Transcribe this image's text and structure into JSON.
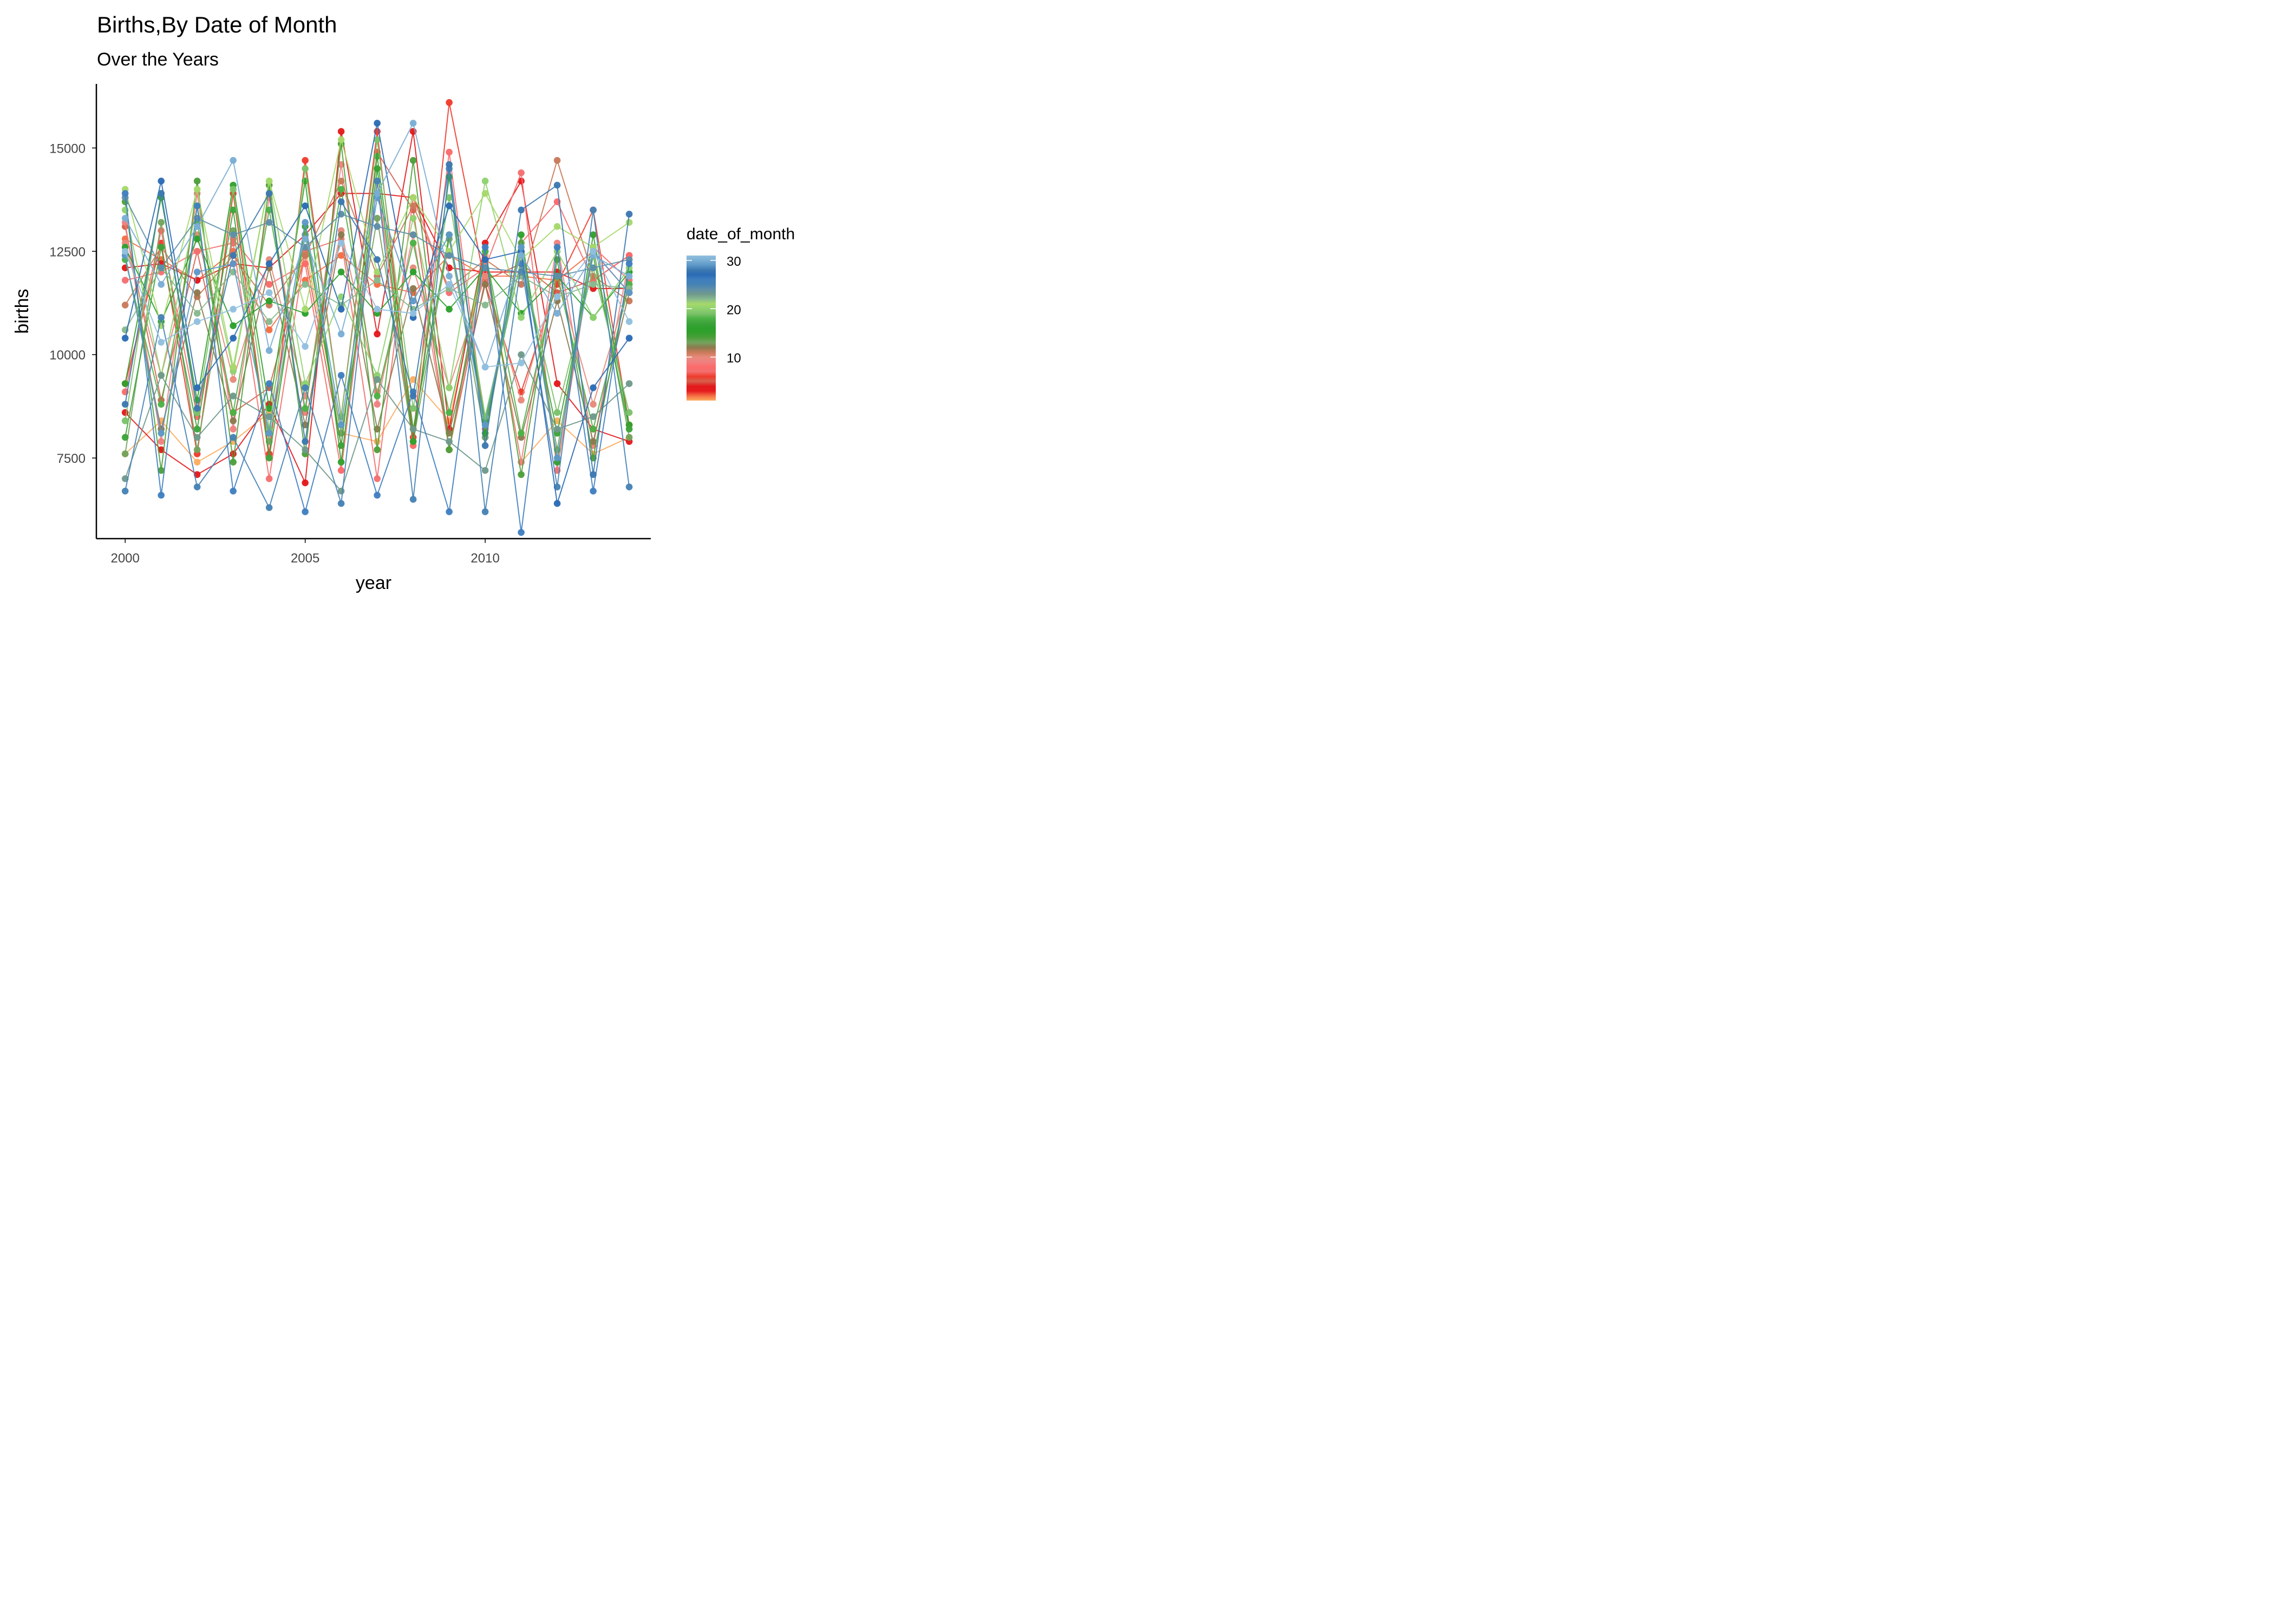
{
  "chart_data": {
    "type": "line",
    "title": "Births,By Date of Month",
    "subtitle": "Over the Years",
    "xlabel": "year",
    "ylabel": "births",
    "legend": {
      "title": "date_of_month",
      "position": "right",
      "ticks": [
        {
          "value": 10,
          "label": "10"
        },
        {
          "value": 20,
          "label": "20"
        },
        {
          "value": 30,
          "label": "30"
        }
      ]
    },
    "x_ticks": [
      2000,
      2005,
      2010
    ],
    "y_ticks": [
      7500,
      10000,
      12500,
      15000
    ],
    "xlim": [
      1999.2,
      2014.6
    ],
    "ylim": [
      5550,
      16550
    ],
    "years": [
      2000,
      2001,
      2002,
      2003,
      2004,
      2005,
      2006,
      2007,
      2008,
      2009,
      2010,
      2011,
      2012,
      2013,
      2014
    ],
    "series": [
      {
        "date_of_month": 1,
        "color": "#fdae61",
        "values": [
          7600,
          8400,
          7400,
          7900,
          8600,
          12600,
          8100,
          7900,
          9400,
          8400,
          12400,
          7400,
          8400,
          7600,
          8000
        ]
      },
      {
        "date_of_month": 2,
        "color": "#f46d43",
        "values": [
          12800,
          12300,
          11800,
          12500,
          10600,
          11800,
          12400,
          11700,
          11500,
          12400,
          11900,
          11900,
          11800,
          12500,
          11500
        ]
      },
      {
        "date_of_month": 3,
        "color": "#e41a1c",
        "values": [
          12100,
          12200,
          11800,
          12200,
          12100,
          12900,
          13900,
          13900,
          13800,
          12100,
          12000,
          12000,
          12000,
          11600,
          11600
        ]
      },
      {
        "date_of_month": 4,
        "color": "#e31a1c",
        "values": [
          8600,
          7700,
          7100,
          7600,
          8800,
          6900,
          15400,
          10500,
          15400,
          8200,
          12700,
          14200,
          9300,
          8200,
          7900
        ]
      },
      {
        "date_of_month": 5,
        "color": "#d6604d",
        "values": [
          13100,
          8900,
          12500,
          8600,
          9200,
          12400,
          7800,
          14900,
          13500,
          7700,
          11800,
          12200,
          11500,
          11800,
          12400
        ]
      },
      {
        "date_of_month": 6,
        "color": "#ef3b2c",
        "values": [
          9300,
          12700,
          7600,
          13900,
          7600,
          14700,
          8500,
          15400,
          8000,
          16100,
          11700,
          9100,
          11700,
          13500,
          8300
        ]
      },
      {
        "date_of_month": 7,
        "color": "#f46f6f",
        "values": [
          11800,
          12000,
          12500,
          12700,
          7000,
          12500,
          12800,
          7000,
          13800,
          11500,
          12100,
          14400,
          7200,
          12600,
          11800
        ]
      },
      {
        "date_of_month": 8,
        "color": "#fb6a6a",
        "values": [
          9100,
          13000,
          8500,
          12800,
          11700,
          12200,
          7200,
          14200,
          7800,
          14900,
          8200,
          12700,
          13700,
          11800,
          12400
        ]
      },
      {
        "date_of_month": 9,
        "color": "#f08080",
        "values": [
          13200,
          7900,
          13900,
          8200,
          13800,
          8600,
          14600,
          8800,
          12900,
          7700,
          12200,
          7400,
          12700,
          7800,
          12300
        ]
      },
      {
        "date_of_month": 10,
        "color": "#e78a7a",
        "values": [
          12700,
          9500,
          12900,
          9400,
          12300,
          9000,
          13000,
          9100,
          12100,
          9200,
          11900,
          8900,
          11900,
          8800,
          11700
        ]
      },
      {
        "date_of_month": 11,
        "color": "#c87a5a",
        "values": [
          11200,
          12600,
          11400,
          12400,
          11200,
          12400,
          14200,
          11900,
          13600,
          11600,
          12300,
          11700,
          14700,
          11900,
          11300
        ]
      },
      {
        "date_of_month": 12,
        "color": "#8c7a4e",
        "values": [
          12400,
          8200,
          11500,
          8400,
          12100,
          8300,
          12900,
          8200,
          11600,
          8100,
          11700,
          8000,
          11300,
          7900,
          11500
        ]
      },
      {
        "date_of_month": 13,
        "color": "#74a35e",
        "values": [
          7600,
          13200,
          7700,
          13000,
          7900,
          12900,
          8100,
          13300,
          7900,
          12800,
          8000,
          12700,
          7700,
          12600,
          8000
        ]
      },
      {
        "date_of_month": 14,
        "color": "#4d9f3a",
        "values": [
          13700,
          7200,
          14200,
          7400,
          14100,
          7600,
          15100,
          7700,
          14700,
          7700,
          12500,
          7100,
          12300,
          7500,
          12000
        ]
      },
      {
        "date_of_month": 15,
        "color": "#33a02c",
        "values": [
          9300,
          13800,
          8900,
          14100,
          8700,
          14200,
          7400,
          14500,
          7900,
          14300,
          8100,
          12900,
          7400,
          12900,
          8300
        ]
      },
      {
        "date_of_month": 16,
        "color": "#2ca02c",
        "values": [
          12600,
          10800,
          12800,
          10700,
          11300,
          11000,
          12000,
          11000,
          12000,
          11100,
          12100,
          11000,
          11900,
          10900,
          12000
        ]
      },
      {
        "date_of_month": 17,
        "color": "#3ca33a",
        "values": [
          8000,
          12600,
          8200,
          13500,
          7500,
          13100,
          7800,
          14800,
          8200,
          12900,
          8400,
          12300,
          8100,
          12400,
          8200
        ]
      },
      {
        "date_of_month": 18,
        "color": "#4cb246",
        "values": [
          12300,
          8800,
          13200,
          8600,
          13500,
          8700,
          14000,
          9000,
          12700,
          8600,
          12500,
          8100,
          11900,
          8200,
          11700
        ]
      },
      {
        "date_of_month": 19,
        "color": "#7cc26a",
        "values": [
          8400,
          13900,
          8600,
          14000,
          8200,
          14500,
          8500,
          15200,
          8700,
          13800,
          8500,
          12300,
          8600,
          12100,
          8600
        ]
      },
      {
        "date_of_month": 20,
        "color": "#8fd16f",
        "values": [
          13500,
          9500,
          13600,
          9600,
          14200,
          9300,
          11400,
          9500,
          13300,
          9200,
          14200,
          10900,
          12500,
          10900,
          12100
        ]
      },
      {
        "date_of_month": 21,
        "color": "#a6d96a",
        "values": [
          14000,
          10700,
          14000,
          9700,
          14200,
          11100,
          15200,
          12000,
          13800,
          12500,
          13900,
          12300,
          13100,
          12600,
          13200
        ]
      },
      {
        "date_of_month": 22,
        "color": "#86b98e",
        "values": [
          10600,
          12100,
          11000,
          12000,
          10800,
          11700,
          11200,
          11800,
          11100,
          11600,
          11200,
          11900,
          11400,
          11700,
          11600
        ]
      },
      {
        "date_of_month": 23,
        "color": "#6f998b",
        "values": [
          7000,
          9500,
          8000,
          9000,
          8500,
          7700,
          6700,
          9400,
          8200,
          7900,
          7200,
          10000,
          8200,
          8500,
          9300
        ]
      },
      {
        "date_of_month": 24,
        "color": "#5f8fa8",
        "values": [
          13800,
          12100,
          13300,
          12900,
          13200,
          12600,
          13400,
          13100,
          12900,
          12400,
          12100,
          12000,
          11900,
          12100,
          12300
        ]
      },
      {
        "date_of_month": 25,
        "color": "#4682b4",
        "values": [
          6700,
          10900,
          6800,
          8000,
          6300,
          9200,
          6400,
          14200,
          6500,
          14500,
          6200,
          12200,
          6800,
          13500,
          6800
        ]
      },
      {
        "date_of_month": 26,
        "color": "#3f7fbf",
        "values": [
          13900,
          6600,
          13600,
          6700,
          9300,
          6200,
          9500,
          6600,
          9100,
          6200,
          12600,
          5700,
          12600,
          6700,
          12200
        ]
      },
      {
        "date_of_month": 27,
        "color": "#2b6bb5",
        "values": [
          10400,
          14200,
          9200,
          10400,
          12200,
          13600,
          11100,
          15600,
          10900,
          13600,
          12300,
          12500,
          6400,
          9200,
          10400
        ]
      },
      {
        "date_of_month": 28,
        "color": "#3c78b0",
        "values": [
          8800,
          13900,
          8700,
          12400,
          13900,
          7900,
          13700,
          12300,
          9000,
          14600,
          7800,
          13500,
          14100,
          7100,
          13400
        ]
      },
      {
        "date_of_month": 29,
        "color": "#5e98c8",
        "values": [
          12400,
          8100,
          12000,
          12200,
          8100,
          13200,
          8300,
          13800,
          11300,
          12900,
          8300,
          12600,
          7500,
          12500,
          11500
        ]
      },
      {
        "date_of_month": 30,
        "color": "#7aaed4",
        "values": [
          13300,
          11700,
          13100,
          14700,
          10100,
          12800,
          10500,
          13900,
          15600,
          11900,
          9700,
          12400,
          11000,
          12400,
          11900
        ]
      },
      {
        "date_of_month": 31,
        "color": "#92c0df",
        "values": [
          12500,
          10300,
          10800,
          11100,
          11500,
          10200,
          12700,
          11100,
          11000,
          11700,
          9700,
          9800,
          11400,
          12500,
          10800
        ]
      }
    ]
  }
}
